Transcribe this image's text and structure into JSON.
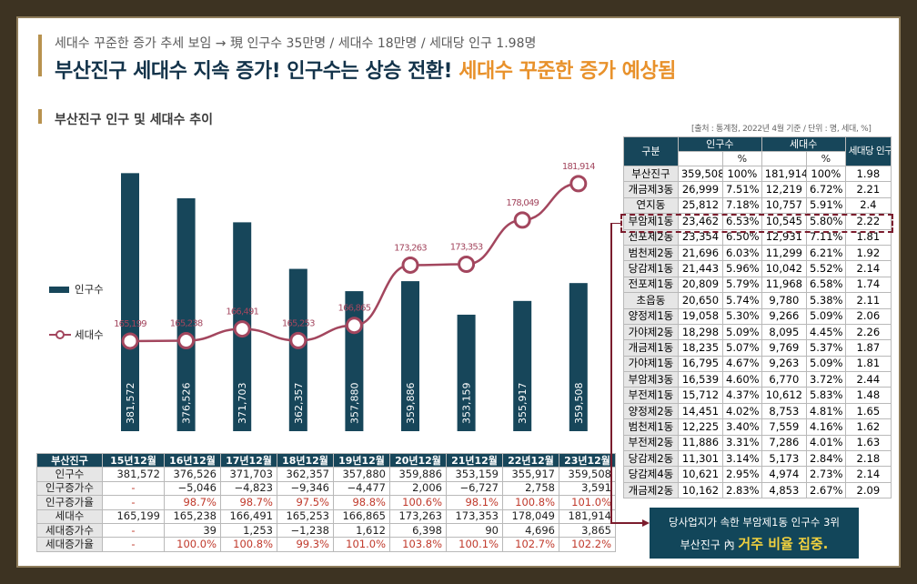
{
  "subtitle": "세대수 꾸준한 증가 추세 보임 → 現 인구수 35만명 / 세대수 18만명 / 세대당 인구 1.98명",
  "headline": {
    "main": "부산진구 세대수 지속 증가! 인구수는 상승 전환!",
    "highlight": "세대수 꾸준한 증가 예상됨"
  },
  "section_title": "부산진구 인구 및 세대수 추이",
  "source": "[출처 : 통계청, 2022년 4월 기준 / 단위 : 명, 세대, %]",
  "colors": {
    "bar": "#17465a",
    "line": "#a3465e",
    "accent": "#b8924f",
    "highlight_text": "#e8912b",
    "callout_bg": "#12465a",
    "callout_emphasis": "#f3d23e",
    "dashed_box": "#7b1c2d"
  },
  "chart_data": {
    "type": "bar+line",
    "categories": [
      "15년12월",
      "16년12월",
      "17년12월",
      "18년12월",
      "19년12월",
      "20년12월",
      "21년12월",
      "22년12월",
      "23년12월"
    ],
    "series": [
      {
        "name": "인구수",
        "type": "bar",
        "values": [
          381572,
          376526,
          371703,
          362357,
          357880,
          359886,
          353159,
          355917,
          359508
        ],
        "labels": [
          "381,572",
          "376,526",
          "371,703",
          "362,357",
          "357,880",
          "359,886",
          "353,159",
          "355,917",
          "359,508"
        ]
      },
      {
        "name": "세대수",
        "type": "line",
        "values": [
          165199,
          165238,
          166491,
          165253,
          166865,
          173263,
          173353,
          178049,
          181914
        ],
        "labels": [
          "165,199",
          "165,238",
          "166,491",
          "165,253",
          "166,865",
          "173,263",
          "173,353",
          "178,049",
          "181,914"
        ]
      }
    ],
    "legend_position": "left",
    "grid": false
  },
  "legend": {
    "bar": "인구수",
    "line": "세대수"
  },
  "left_table": {
    "header": [
      "부산진구",
      "15년12월",
      "16년12월",
      "17년12월",
      "18년12월",
      "19년12월",
      "20년12월",
      "21년12월",
      "22년12월",
      "23년12월"
    ],
    "rows": [
      {
        "label": "인구수",
        "values": [
          "381,572",
          "376,526",
          "371,703",
          "362,357",
          "357,880",
          "359,886",
          "353,159",
          "355,917",
          "359,508"
        ]
      },
      {
        "label": "인구증가수",
        "values": [
          "-",
          "−5,046",
          "−4,823",
          "−9,346",
          "−4,477",
          "2,006",
          "−6,727",
          "2,758",
          "3,591"
        ]
      },
      {
        "label": "인구증가율",
        "values": [
          "-",
          "98.7%",
          "98.7%",
          "97.5%",
          "98.8%",
          "100.6%",
          "98.1%",
          "100.8%",
          "101.0%"
        ]
      },
      {
        "label": "세대수",
        "values": [
          "165,199",
          "165,238",
          "166,491",
          "165,253",
          "166,865",
          "173,263",
          "173,353",
          "178,049",
          "181,914"
        ]
      },
      {
        "label": "세대증가수",
        "values": [
          "-",
          "39",
          "1,253",
          "−1,238",
          "1,612",
          "6,398",
          "90",
          "4,696",
          "3,865"
        ]
      },
      {
        "label": "세대증가율",
        "values": [
          "-",
          "100.0%",
          "100.8%",
          "99.3%",
          "101.0%",
          "103.8%",
          "100.1%",
          "102.7%",
          "102.2%"
        ]
      }
    ]
  },
  "right_table": {
    "header": {
      "gubun": "구분",
      "pop": "인구수",
      "hh": "세대수",
      "per": "세대당 인구",
      "pct": "%"
    },
    "rows": [
      [
        "부산진구",
        "359,508",
        "100%",
        "181,914",
        "100%",
        "1.98"
      ],
      [
        "개금제3동",
        "26,999",
        "7.51%",
        "12,219",
        "6.72%",
        "2.21"
      ],
      [
        "연지동",
        "25,812",
        "7.18%",
        "10,757",
        "5.91%",
        "2.4"
      ],
      [
        "부암제1동",
        "23,462",
        "6.53%",
        "10,545",
        "5.80%",
        "2.22"
      ],
      [
        "전포제2동",
        "23,354",
        "6.50%",
        "12,931",
        "7.11%",
        "1.81"
      ],
      [
        "범천제2동",
        "21,696",
        "6.03%",
        "11,299",
        "6.21%",
        "1.92"
      ],
      [
        "당감제1동",
        "21,443",
        "5.96%",
        "10,042",
        "5.52%",
        "2.14"
      ],
      [
        "전포제1동",
        "20,809",
        "5.79%",
        "11,968",
        "6.58%",
        "1.74"
      ],
      [
        "초읍동",
        "20,650",
        "5.74%",
        "9,780",
        "5.38%",
        "2.11"
      ],
      [
        "양정제1동",
        "19,058",
        "5.30%",
        "9,266",
        "5.09%",
        "2.06"
      ],
      [
        "가야제2동",
        "18,298",
        "5.09%",
        "8,095",
        "4.45%",
        "2.26"
      ],
      [
        "개금제1동",
        "18,235",
        "5.07%",
        "9,769",
        "5.37%",
        "1.87"
      ],
      [
        "가야제1동",
        "16,795",
        "4.67%",
        "9,263",
        "5.09%",
        "1.81"
      ],
      [
        "부암제3동",
        "16,539",
        "4.60%",
        "6,770",
        "3.72%",
        "2.44"
      ],
      [
        "부전제1동",
        "15,712",
        "4.37%",
        "10,612",
        "5.83%",
        "1.48"
      ],
      [
        "양정제2동",
        "14,451",
        "4.02%",
        "8,753",
        "4.81%",
        "1.65"
      ],
      [
        "범천제1동",
        "12,225",
        "3.40%",
        "7,559",
        "4.16%",
        "1.62"
      ],
      [
        "부전제2동",
        "11,886",
        "3.31%",
        "7,286",
        "4.01%",
        "1.63"
      ],
      [
        "당감제2동",
        "11,301",
        "3.14%",
        "5,173",
        "2.84%",
        "2.18"
      ],
      [
        "당감제4동",
        "10,621",
        "2.95%",
        "4,974",
        "2.73%",
        "2.14"
      ],
      [
        "개금제2동",
        "10,162",
        "2.83%",
        "4,853",
        "2.67%",
        "2.09"
      ]
    ],
    "highlight_row": "부암제1동"
  },
  "callout": {
    "line1": "당사업지가 속한 부암제1동 인구수 3위",
    "line2_prefix": "부산진구 內",
    "line2_emphasis": "거주 비율 집중."
  }
}
